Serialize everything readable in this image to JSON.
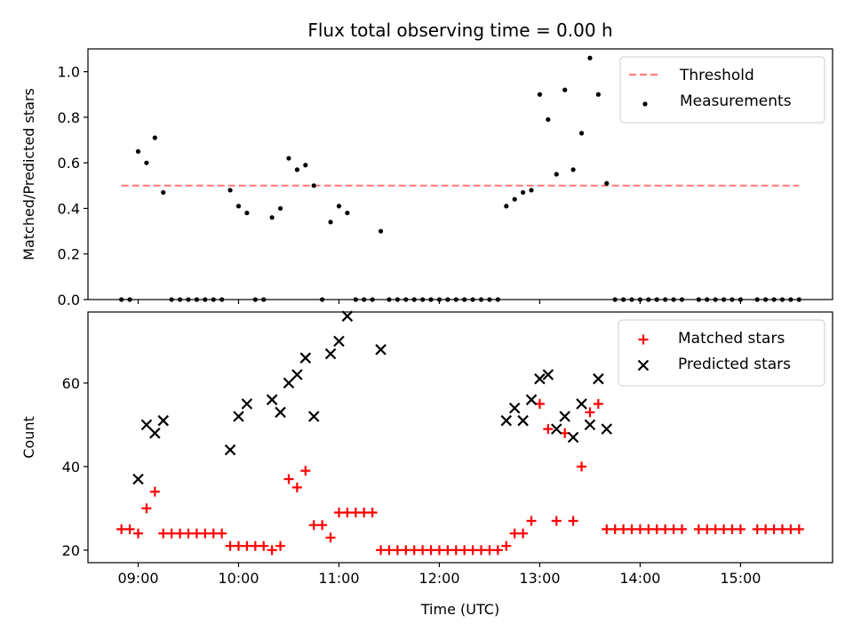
{
  "chart_data": [
    {
      "type": "scatter",
      "title": "Flux total observing time = 0.00 h",
      "xlabel": "",
      "ylabel": "Matched/Predicted stars",
      "xlim": [
        "08:30",
        "15:55"
      ],
      "ylim": [
        0,
        1.1
      ],
      "yticks": [
        "0.0",
        "0.2",
        "0.4",
        "0.6",
        "0.8",
        "1.0"
      ],
      "xticks": [
        "09:00",
        "10:00",
        "11:00",
        "12:00",
        "13:00",
        "14:00",
        "15:00"
      ],
      "legend_position": "top-right",
      "threshold": {
        "name": "Threshold",
        "value": 0.5,
        "x_range": [
          "08:50",
          "15:35"
        ],
        "color": "#ff7f7f"
      },
      "series": [
        {
          "name": "Measurements",
          "color": "#000000",
          "marker": "dot",
          "points": [
            [
              "08:50",
              0
            ],
            [
              "08:55",
              0
            ],
            [
              "09:00",
              0.65
            ],
            [
              "09:05",
              0.6
            ],
            [
              "09:10",
              0.71
            ],
            [
              "09:15",
              0.47
            ],
            [
              "09:20",
              0
            ],
            [
              "09:25",
              0
            ],
            [
              "09:30",
              0
            ],
            [
              "09:35",
              0
            ],
            [
              "09:40",
              0
            ],
            [
              "09:45",
              0
            ],
            [
              "09:50",
              0
            ],
            [
              "09:55",
              0.48
            ],
            [
              "10:00",
              0.41
            ],
            [
              "10:05",
              0.38
            ],
            [
              "10:10",
              0
            ],
            [
              "10:15",
              0
            ],
            [
              "10:20",
              0.36
            ],
            [
              "10:25",
              0.4
            ],
            [
              "10:30",
              0.62
            ],
            [
              "10:35",
              0.57
            ],
            [
              "10:40",
              0.59
            ],
            [
              "10:45",
              0.5
            ],
            [
              "10:50",
              0
            ],
            [
              "10:55",
              0.34
            ],
            [
              "11:00",
              0.41
            ],
            [
              "11:05",
              0.38
            ],
            [
              "11:10",
              0
            ],
            [
              "11:15",
              0
            ],
            [
              "11:20",
              0
            ],
            [
              "11:25",
              0.3
            ],
            [
              "11:30",
              0
            ],
            [
              "11:35",
              0
            ],
            [
              "11:40",
              0
            ],
            [
              "11:45",
              0
            ],
            [
              "11:50",
              0
            ],
            [
              "11:55",
              0
            ],
            [
              "12:00",
              0
            ],
            [
              "12:05",
              0
            ],
            [
              "12:10",
              0
            ],
            [
              "12:15",
              0
            ],
            [
              "12:20",
              0
            ],
            [
              "12:25",
              0
            ],
            [
              "12:30",
              0
            ],
            [
              "12:35",
              0
            ],
            [
              "12:40",
              0.41
            ],
            [
              "12:45",
              0.44
            ],
            [
              "12:50",
              0.47
            ],
            [
              "12:55",
              0.48
            ],
            [
              "13:00",
              0.9
            ],
            [
              "13:05",
              0.79
            ],
            [
              "13:10",
              0.55
            ],
            [
              "13:15",
              0.92
            ],
            [
              "13:20",
              0.57
            ],
            [
              "13:25",
              0.73
            ],
            [
              "13:30",
              1.06
            ],
            [
              "13:35",
              0.9
            ],
            [
              "13:40",
              0.51
            ],
            [
              "13:45",
              0
            ],
            [
              "13:50",
              0
            ],
            [
              "13:55",
              0
            ],
            [
              "14:00",
              0
            ],
            [
              "14:05",
              0
            ],
            [
              "14:10",
              0
            ],
            [
              "14:15",
              0
            ],
            [
              "14:20",
              0
            ],
            [
              "14:25",
              0
            ],
            [
              "14:35",
              0
            ],
            [
              "14:40",
              0
            ],
            [
              "14:45",
              0
            ],
            [
              "14:50",
              0
            ],
            [
              "14:55",
              0
            ],
            [
              "15:00",
              0
            ],
            [
              "15:10",
              0
            ],
            [
              "15:15",
              0
            ],
            [
              "15:20",
              0
            ],
            [
              "15:25",
              0
            ],
            [
              "15:30",
              0
            ],
            [
              "15:35",
              0
            ]
          ]
        }
      ]
    },
    {
      "type": "scatter",
      "title": "",
      "xlabel": "Time (UTC)",
      "ylabel": "Count",
      "xlim": [
        "08:30",
        "15:55"
      ],
      "ylim": [
        17,
        77
      ],
      "yticks": [
        "20",
        "40",
        "60"
      ],
      "xticks": [
        "09:00",
        "10:00",
        "11:00",
        "12:00",
        "13:00",
        "14:00",
        "15:00"
      ],
      "legend_position": "top-right",
      "series": [
        {
          "name": "Matched stars",
          "color": "#ff0000",
          "marker": "plus",
          "points": [
            [
              "08:50",
              25
            ],
            [
              "08:55",
              25
            ],
            [
              "09:00",
              24
            ],
            [
              "09:05",
              30
            ],
            [
              "09:10",
              34
            ],
            [
              "09:15",
              24
            ],
            [
              "09:20",
              24
            ],
            [
              "09:25",
              24
            ],
            [
              "09:30",
              24
            ],
            [
              "09:35",
              24
            ],
            [
              "09:40",
              24
            ],
            [
              "09:45",
              24
            ],
            [
              "09:50",
              24
            ],
            [
              "09:55",
              21
            ],
            [
              "10:00",
              21
            ],
            [
              "10:05",
              21
            ],
            [
              "10:10",
              21
            ],
            [
              "10:15",
              21
            ],
            [
              "10:20",
              20
            ],
            [
              "10:25",
              21
            ],
            [
              "10:30",
              37
            ],
            [
              "10:35",
              35
            ],
            [
              "10:40",
              39
            ],
            [
              "10:45",
              26
            ],
            [
              "10:50",
              26
            ],
            [
              "10:55",
              23
            ],
            [
              "11:00",
              29
            ],
            [
              "11:05",
              29
            ],
            [
              "11:10",
              29
            ],
            [
              "11:15",
              29
            ],
            [
              "11:20",
              29
            ],
            [
              "11:25",
              20
            ],
            [
              "11:30",
              20
            ],
            [
              "11:35",
              20
            ],
            [
              "11:40",
              20
            ],
            [
              "11:45",
              20
            ],
            [
              "11:50",
              20
            ],
            [
              "11:55",
              20
            ],
            [
              "12:00",
              20
            ],
            [
              "12:05",
              20
            ],
            [
              "12:10",
              20
            ],
            [
              "12:15",
              20
            ],
            [
              "12:20",
              20
            ],
            [
              "12:25",
              20
            ],
            [
              "12:30",
              20
            ],
            [
              "12:35",
              20
            ],
            [
              "12:40",
              21
            ],
            [
              "12:45",
              24
            ],
            [
              "12:50",
              24
            ],
            [
              "12:55",
              27
            ],
            [
              "13:00",
              55
            ],
            [
              "13:05",
              49
            ],
            [
              "13:10",
              27
            ],
            [
              "13:15",
              48
            ],
            [
              "13:20",
              27
            ],
            [
              "13:25",
              40
            ],
            [
              "13:30",
              53
            ],
            [
              "13:35",
              55
            ],
            [
              "13:40",
              25
            ],
            [
              "13:45",
              25
            ],
            [
              "13:50",
              25
            ],
            [
              "13:55",
              25
            ],
            [
              "14:00",
              25
            ],
            [
              "14:05",
              25
            ],
            [
              "14:10",
              25
            ],
            [
              "14:15",
              25
            ],
            [
              "14:20",
              25
            ],
            [
              "14:25",
              25
            ],
            [
              "14:35",
              25
            ],
            [
              "14:40",
              25
            ],
            [
              "14:45",
              25
            ],
            [
              "14:50",
              25
            ],
            [
              "14:55",
              25
            ],
            [
              "15:00",
              25
            ],
            [
              "15:10",
              25
            ],
            [
              "15:15",
              25
            ],
            [
              "15:20",
              25
            ],
            [
              "15:25",
              25
            ],
            [
              "15:30",
              25
            ],
            [
              "15:35",
              25
            ]
          ]
        },
        {
          "name": "Predicted stars",
          "color": "#000000",
          "marker": "x",
          "points": [
            [
              "09:00",
              37
            ],
            [
              "09:05",
              50
            ],
            [
              "09:10",
              48
            ],
            [
              "09:15",
              51
            ],
            [
              "09:55",
              44
            ],
            [
              "10:00",
              52
            ],
            [
              "10:05",
              55
            ],
            [
              "10:20",
              56
            ],
            [
              "10:25",
              53
            ],
            [
              "10:30",
              60
            ],
            [
              "10:35",
              62
            ],
            [
              "10:40",
              66
            ],
            [
              "10:45",
              52
            ],
            [
              "10:55",
              67
            ],
            [
              "11:00",
              70
            ],
            [
              "11:05",
              76
            ],
            [
              "11:25",
              68
            ],
            [
              "12:40",
              51
            ],
            [
              "12:45",
              54
            ],
            [
              "12:50",
              51
            ],
            [
              "12:55",
              56
            ],
            [
              "13:00",
              61
            ],
            [
              "13:05",
              62
            ],
            [
              "13:10",
              49
            ],
            [
              "13:15",
              52
            ],
            [
              "13:20",
              47
            ],
            [
              "13:25",
              55
            ],
            [
              "13:30",
              50
            ],
            [
              "13:35",
              61
            ],
            [
              "13:40",
              49
            ]
          ]
        }
      ]
    }
  ]
}
